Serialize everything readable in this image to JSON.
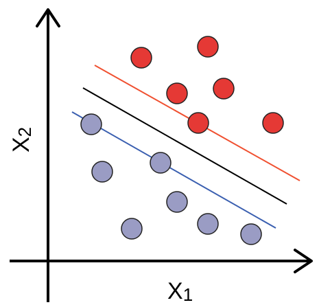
{
  "axes": {
    "x_label": "X",
    "x_subscript": "1",
    "y_label": "X",
    "y_subscript": "2"
  },
  "colors": {
    "axis": "#000000",
    "class_a_fill": "#e53935",
    "class_b_fill": "#9a9cc4",
    "point_stroke": "#222222",
    "upper_margin": "#f05030",
    "decision_boundary": "#000000",
    "lower_margin": "#3a5fb0"
  }
}
